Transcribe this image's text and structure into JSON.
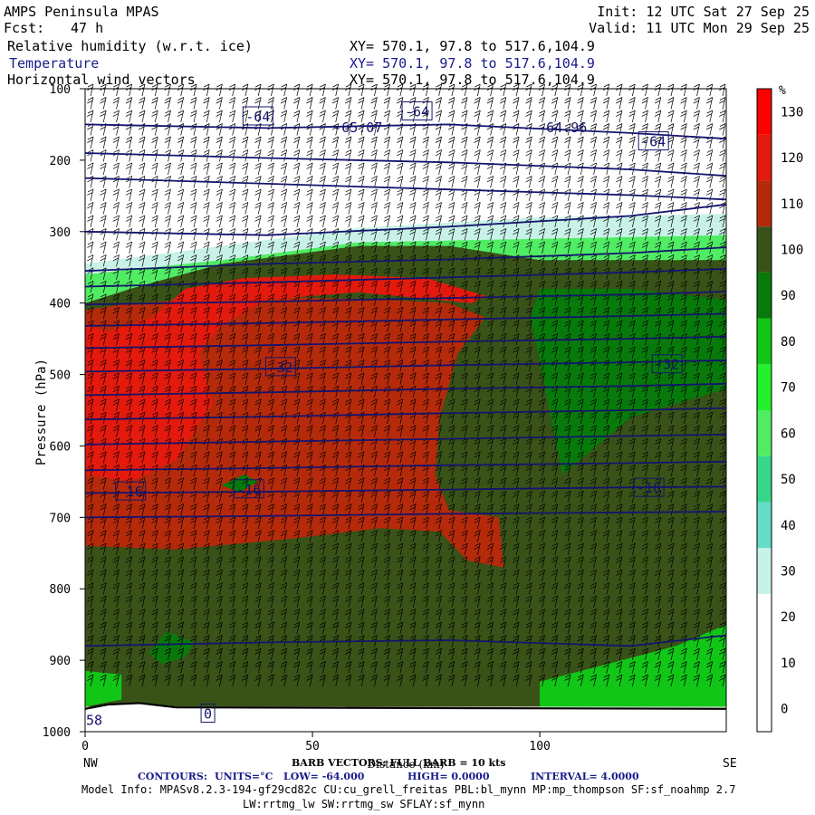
{
  "header": {
    "left1": "AMPS Peninsula MPAS",
    "left2_label": "Fcst:",
    "left2_value": "47 h",
    "right1": "Init: 12 UTC Sat 27 Sep 25",
    "right2": "Valid: 11 UTC Mon 29 Sep 25",
    "fields": [
      {
        "name": "Relative humidity (w.r.t. ice)",
        "xy": "XY= 570.1, 97.8 to 517.6,104.9"
      },
      {
        "name": "Temperature",
        "xy": "XY= 570.1, 97.8 to 517.6,104.9"
      },
      {
        "name": "Horizontal wind vectors",
        "xy": "XY= 570.1, 97.8 to 517.6,104.9"
      }
    ]
  },
  "colors": {
    "contour": "#14146e",
    "rh_scale": [
      {
        "min": 0,
        "max": 10,
        "color": "#ffffff"
      },
      {
        "min": 10,
        "max": 20,
        "color": "#ffffff"
      },
      {
        "min": 20,
        "max": 30,
        "color": "#ffffff"
      },
      {
        "min": 30,
        "max": 40,
        "color": "#c8f2e8"
      },
      {
        "min": 40,
        "max": 50,
        "color": "#66ddc7"
      },
      {
        "min": 50,
        "max": 60,
        "color": "#37d78a"
      },
      {
        "min": 60,
        "max": 70,
        "color": "#50ec64"
      },
      {
        "min": 70,
        "max": 80,
        "color": "#22f12b"
      },
      {
        "min": 80,
        "max": 90,
        "color": "#11c617"
      },
      {
        "min": 90,
        "max": 100,
        "color": "#087a0b"
      },
      {
        "min": 100,
        "max": 110,
        "color": "#395218"
      },
      {
        "min": 110,
        "max": 120,
        "color": "#b52a0b"
      },
      {
        "min": 120,
        "max": 130,
        "color": "#e31a0d"
      },
      {
        "min": 130,
        "max": 140,
        "color": "#ff0000"
      }
    ]
  },
  "chart_data": {
    "type": "heatmap",
    "xlabel": "Distance (km)",
    "ylabel": "Pressure (hPa)",
    "xlim": [
      0,
      141
    ],
    "ylim": [
      1000,
      100
    ],
    "x_ticks": [
      0,
      50,
      100
    ],
    "y_ticks": [
      100,
      200,
      300,
      400,
      500,
      600,
      700,
      800,
      900,
      1000
    ],
    "x_endpoint_labels": [
      "NW",
      "SE"
    ],
    "colorbar_unit": "%",
    "colorbar_ticks": [
      0,
      10,
      20,
      30,
      40,
      50,
      60,
      70,
      80,
      90,
      100,
      110,
      120,
      130
    ],
    "rh_regions": [
      {
        "rh": 10,
        "points": [
          [
            0,
            1000
          ],
          [
            141,
            1000
          ],
          [
            141,
            100
          ],
          [
            0,
            100
          ]
        ]
      },
      {
        "rh": 35,
        "points": [
          [
            0,
            430
          ],
          [
            141,
            340
          ],
          [
            141,
            275
          ],
          [
            100,
            280
          ],
          [
            60,
            295
          ],
          [
            30,
            320
          ],
          [
            0,
            345
          ]
        ]
      },
      {
        "rh": 65,
        "points": [
          [
            0,
            440
          ],
          [
            141,
            350
          ],
          [
            141,
            305
          ],
          [
            100,
            310
          ],
          [
            60,
            315
          ],
          [
            30,
            340
          ],
          [
            0,
            360
          ]
        ]
      },
      {
        "rh": 105,
        "points": [
          [
            0,
            965
          ],
          [
            141,
            965
          ],
          [
            141,
            340
          ],
          [
            100,
            340
          ],
          [
            80,
            320
          ],
          [
            60,
            320
          ],
          [
            30,
            345
          ],
          [
            10,
            380
          ],
          [
            0,
            400
          ]
        ]
      },
      {
        "rh": 95,
        "points": [
          [
            105,
            640
          ],
          [
            120,
            560
          ],
          [
            141,
            520
          ],
          [
            141,
            395
          ],
          [
            120,
            380
          ],
          [
            100,
            380
          ],
          [
            98,
            420
          ]
        ]
      },
      {
        "rh": 85,
        "points": [
          [
            100,
            965
          ],
          [
            141,
            965
          ],
          [
            141,
            850
          ],
          [
            130,
            880
          ],
          [
            115,
            905
          ],
          [
            100,
            930
          ]
        ]
      },
      {
        "rh": 85,
        "points": [
          [
            0,
            965
          ],
          [
            8,
            955
          ],
          [
            8,
            920
          ],
          [
            0,
            915
          ]
        ]
      },
      {
        "rh": 95,
        "points": [
          [
            18,
            860
          ],
          [
            24,
            875
          ],
          [
            22,
            895
          ],
          [
            17,
            905
          ],
          [
            14,
            890
          ]
        ]
      },
      {
        "rh": 115,
        "points": [
          [
            0,
            740
          ],
          [
            20,
            745
          ],
          [
            45,
            730
          ],
          [
            65,
            715
          ],
          [
            78,
            720
          ],
          [
            84,
            760
          ],
          [
            92,
            770
          ],
          [
            91,
            700
          ],
          [
            80,
            690
          ],
          [
            77,
            640
          ],
          [
            78,
            560
          ],
          [
            82,
            470
          ],
          [
            88,
            420
          ],
          [
            80,
            400
          ],
          [
            65,
            395
          ],
          [
            45,
            392
          ],
          [
            25,
            395
          ],
          [
            10,
            400
          ],
          [
            0,
            410
          ]
        ]
      },
      {
        "rh": 125,
        "points": [
          [
            0,
            640
          ],
          [
            10,
            650
          ],
          [
            20,
            620
          ],
          [
            28,
            540
          ],
          [
            25,
            470
          ],
          [
            30,
            430
          ],
          [
            40,
            395
          ],
          [
            60,
            385
          ],
          [
            85,
            400
          ],
          [
            88,
            390
          ],
          [
            75,
            365
          ],
          [
            55,
            360
          ],
          [
            35,
            365
          ],
          [
            22,
            380
          ],
          [
            15,
            420
          ],
          [
            5,
            440
          ],
          [
            0,
            430
          ]
        ]
      },
      {
        "rh": 95,
        "points": [
          [
            30,
            655
          ],
          [
            34,
            665
          ],
          [
            38,
            650
          ],
          [
            35,
            640
          ]
        ]
      }
    ],
    "temperature_contours": [
      {
        "value": -64,
        "x": [
          0,
          40,
          80,
          120,
          141
        ],
        "p": [
          150,
          155,
          150,
          162,
          170
        ]
      },
      {
        "value": -60,
        "x": [
          0,
          40,
          80,
          120,
          141
        ],
        "p": [
          190,
          197,
          203,
          213,
          222
        ]
      },
      {
        "value": -56,
        "x": [
          0,
          40,
          80,
          120,
          141
        ],
        "p": [
          225,
          233,
          241,
          249,
          255
        ]
      },
      {
        "value": -52,
        "x": [
          0,
          40,
          80,
          120,
          141
        ],
        "p": [
          300,
          305,
          293,
          278,
          262
        ]
      },
      {
        "value": -48,
        "x": [
          0,
          40,
          80,
          120,
          141
        ],
        "p": [
          355,
          345,
          339,
          330,
          322
        ]
      },
      {
        "value": -44,
        "x": [
          0,
          40,
          80,
          120,
          141
        ],
        "p": [
          377,
          371,
          364,
          357,
          352
        ]
      },
      {
        "value": -40,
        "x": [
          0,
          40,
          80,
          120,
          141
        ],
        "p": [
          402,
          398,
          393,
          388,
          384
        ]
      },
      {
        "value": -36,
        "x": [
          0,
          40,
          80,
          120,
          141
        ],
        "p": [
          432,
          428,
          423,
          418,
          415
        ]
      },
      {
        "value": -32,
        "x": [
          0,
          40,
          80,
          120,
          141
        ],
        "p": [
          463,
          459,
          454,
          450,
          447
        ]
      },
      {
        "value": -28,
        "x": [
          0,
          40,
          80,
          120,
          141
        ],
        "p": [
          496,
          492,
          487,
          483,
          480
        ]
      },
      {
        "value": -24,
        "x": [
          0,
          40,
          80,
          120,
          141
        ],
        "p": [
          529,
          525,
          520,
          516,
          513
        ]
      },
      {
        "value": -20,
        "x": [
          0,
          40,
          80,
          120,
          141
        ],
        "p": [
          563,
          559,
          554,
          550,
          547
        ]
      },
      {
        "value": -16,
        "x": [
          0,
          40,
          80,
          120,
          141
        ],
        "p": [
          598,
          594,
          590,
          586,
          584
        ]
      },
      {
        "value": -12,
        "x": [
          0,
          40,
          80,
          120,
          141
        ],
        "p": [
          634,
          631,
          627,
          624,
          622
        ]
      },
      {
        "value": -8,
        "x": [
          0,
          40,
          80,
          120,
          141
        ],
        "p": [
          666,
          664,
          661,
          658,
          657
        ]
      },
      {
        "value": -4,
        "x": [
          0,
          40,
          80,
          120,
          141
        ],
        "p": [
          700,
          698,
          695,
          693,
          692
        ]
      },
      {
        "value": 0,
        "x": [
          0,
          40,
          80,
          120,
          141
        ],
        "p": [
          880,
          875,
          872,
          880,
          865
        ]
      }
    ],
    "contour_labels": [
      {
        "text": "-64",
        "x": 38,
        "p": 138,
        "boxed": true
      },
      {
        "text": "-65.07",
        "x": 60,
        "p": 153,
        "boxed": false
      },
      {
        "text": "-64",
        "x": 73,
        "p": 131,
        "boxed": true
      },
      {
        "text": "-64.96",
        "x": 105,
        "p": 153,
        "boxed": false
      },
      {
        "text": "-64",
        "x": 125,
        "p": 173,
        "boxed": true
      },
      {
        "text": "-32",
        "x": 43,
        "p": 489,
        "boxed": true
      },
      {
        "text": "-32",
        "x": 128,
        "p": 485,
        "boxed": true
      },
      {
        "text": "-16",
        "x": 10,
        "p": 663,
        "boxed": true
      },
      {
        "text": "-16",
        "x": 36,
        "p": 660,
        "boxed": true
      },
      {
        "text": "-16",
        "x": 124,
        "p": 658,
        "boxed": true
      },
      {
        "text": "0",
        "x": 27,
        "p": 974,
        "boxed": true
      },
      {
        "text": "58",
        "x": 2,
        "p": 983,
        "boxed": false
      }
    ],
    "footer": {
      "barb": "BARB VECTORS: FULL BARB = 10 kts",
      "contours_label": "CONTOURS:",
      "units": "UNITS=°C",
      "low": "LOW= -64.000",
      "high": "HIGH= 0.0000",
      "interval": "INTERVAL= 4.0000",
      "model_info": "Model Info: MPASv8.2.3-194-gf29cd82c CU:cu_grell_freitas PBL:bl_mynn MP:mp_thompson SF:sf_noahmp 2.7",
      "model_info2": "LW:rrtmg_lw SW:rrtmg_sw SFLAY:sf_mynn"
    }
  }
}
